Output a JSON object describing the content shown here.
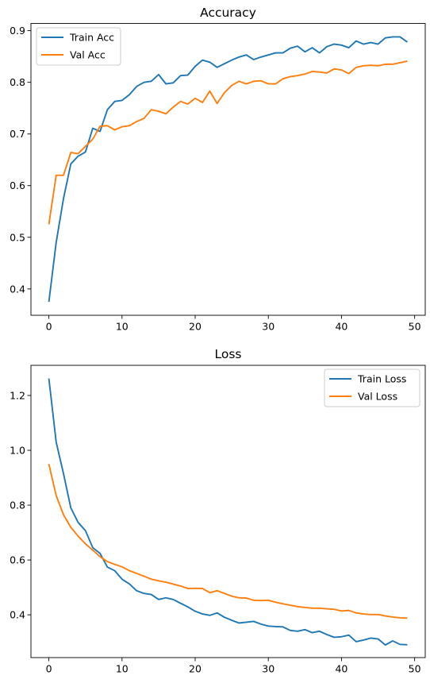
{
  "chart_data": [
    {
      "type": "line",
      "title": "Accuracy",
      "xlabel": "",
      "ylabel": "",
      "xlim": [
        -2.45,
        51.45
      ],
      "ylim": [
        0.349,
        0.914
      ],
      "xticks": [
        0,
        10,
        20,
        30,
        40,
        50
      ],
      "yticks": [
        0.4,
        0.5,
        0.6,
        0.7,
        0.8,
        0.9
      ],
      "xtick_labels": [
        "0",
        "10",
        "20",
        "30",
        "40",
        "50"
      ],
      "ytick_labels": [
        "0.4",
        "0.5",
        "0.6",
        "0.7",
        "0.8",
        "0.9"
      ],
      "grid": false,
      "legend_position": "upper-left",
      "x": [
        0,
        1,
        2,
        3,
        4,
        5,
        6,
        7,
        8,
        9,
        10,
        11,
        12,
        13,
        14,
        15,
        16,
        17,
        18,
        19,
        20,
        21,
        22,
        23,
        24,
        25,
        26,
        27,
        28,
        29,
        30,
        31,
        32,
        33,
        34,
        35,
        36,
        37,
        38,
        39,
        40,
        41,
        42,
        43,
        44,
        45,
        46,
        47,
        48,
        49
      ],
      "series": [
        {
          "name": "Train Acc",
          "color": "#1f77b4",
          "values": [
            0.375,
            0.49,
            0.575,
            0.642,
            0.657,
            0.665,
            0.711,
            0.705,
            0.747,
            0.763,
            0.765,
            0.776,
            0.792,
            0.8,
            0.802,
            0.815,
            0.797,
            0.799,
            0.813,
            0.814,
            0.831,
            0.843,
            0.839,
            0.829,
            0.836,
            0.843,
            0.849,
            0.853,
            0.844,
            0.849,
            0.853,
            0.857,
            0.857,
            0.866,
            0.87,
            0.859,
            0.867,
            0.857,
            0.869,
            0.874,
            0.872,
            0.867,
            0.88,
            0.874,
            0.877,
            0.874,
            0.886,
            0.888,
            0.888,
            0.878
          ]
        },
        {
          "name": "Val Acc",
          "color": "#ff7f0e",
          "values": [
            0.525,
            0.62,
            0.62,
            0.664,
            0.662,
            0.676,
            0.69,
            0.715,
            0.716,
            0.708,
            0.714,
            0.716,
            0.724,
            0.73,
            0.747,
            0.744,
            0.739,
            0.752,
            0.763,
            0.758,
            0.769,
            0.761,
            0.783,
            0.759,
            0.78,
            0.794,
            0.802,
            0.797,
            0.802,
            0.803,
            0.797,
            0.797,
            0.807,
            0.811,
            0.813,
            0.816,
            0.821,
            0.82,
            0.818,
            0.826,
            0.824,
            0.817,
            0.829,
            0.832,
            0.833,
            0.832,
            0.835,
            0.835,
            0.838,
            0.841
          ]
        }
      ]
    },
    {
      "type": "line",
      "title": "Loss",
      "xlabel": "",
      "ylabel": "",
      "xlim": [
        -2.45,
        51.45
      ],
      "ylim": [
        0.244,
        1.31
      ],
      "xticks": [
        0,
        10,
        20,
        30,
        40,
        50
      ],
      "yticks": [
        0.4,
        0.6,
        0.8,
        1.0,
        1.2
      ],
      "xtick_labels": [
        "0",
        "10",
        "20",
        "30",
        "40",
        "50"
      ],
      "ytick_labels": [
        "0.4",
        "0.6",
        "0.8",
        "1.0",
        "1.2"
      ],
      "grid": false,
      "legend_position": "upper-right",
      "x": [
        0,
        1,
        2,
        3,
        4,
        5,
        6,
        7,
        8,
        9,
        10,
        11,
        12,
        13,
        14,
        15,
        16,
        17,
        18,
        19,
        20,
        21,
        22,
        23,
        24,
        25,
        26,
        27,
        28,
        29,
        30,
        31,
        32,
        33,
        34,
        35,
        36,
        37,
        38,
        39,
        40,
        41,
        42,
        43,
        44,
        45,
        46,
        47,
        48,
        49
      ],
      "series": [
        {
          "name": "Train Loss",
          "color": "#1f77b4",
          "values": [
            1.262,
            1.03,
            0.915,
            0.79,
            0.737,
            0.707,
            0.645,
            0.624,
            0.574,
            0.561,
            0.53,
            0.513,
            0.488,
            0.478,
            0.474,
            0.456,
            0.462,
            0.456,
            0.442,
            0.429,
            0.413,
            0.403,
            0.398,
            0.407,
            0.391,
            0.38,
            0.37,
            0.373,
            0.376,
            0.366,
            0.359,
            0.357,
            0.356,
            0.343,
            0.34,
            0.346,
            0.335,
            0.34,
            0.328,
            0.318,
            0.32,
            0.326,
            0.302,
            0.308,
            0.315,
            0.312,
            0.29,
            0.305,
            0.292,
            0.291
          ]
        },
        {
          "name": "Val Loss",
          "color": "#ff7f0e",
          "values": [
            0.95,
            0.835,
            0.765,
            0.719,
            0.687,
            0.659,
            0.636,
            0.612,
            0.594,
            0.584,
            0.575,
            0.561,
            0.551,
            0.541,
            0.53,
            0.524,
            0.519,
            0.512,
            0.505,
            0.496,
            0.497,
            0.496,
            0.481,
            0.488,
            0.478,
            0.468,
            0.462,
            0.461,
            0.453,
            0.452,
            0.453,
            0.446,
            0.44,
            0.435,
            0.43,
            0.427,
            0.424,
            0.424,
            0.422,
            0.42,
            0.414,
            0.416,
            0.407,
            0.403,
            0.401,
            0.401,
            0.396,
            0.392,
            0.389,
            0.388
          ]
        }
      ]
    }
  ]
}
